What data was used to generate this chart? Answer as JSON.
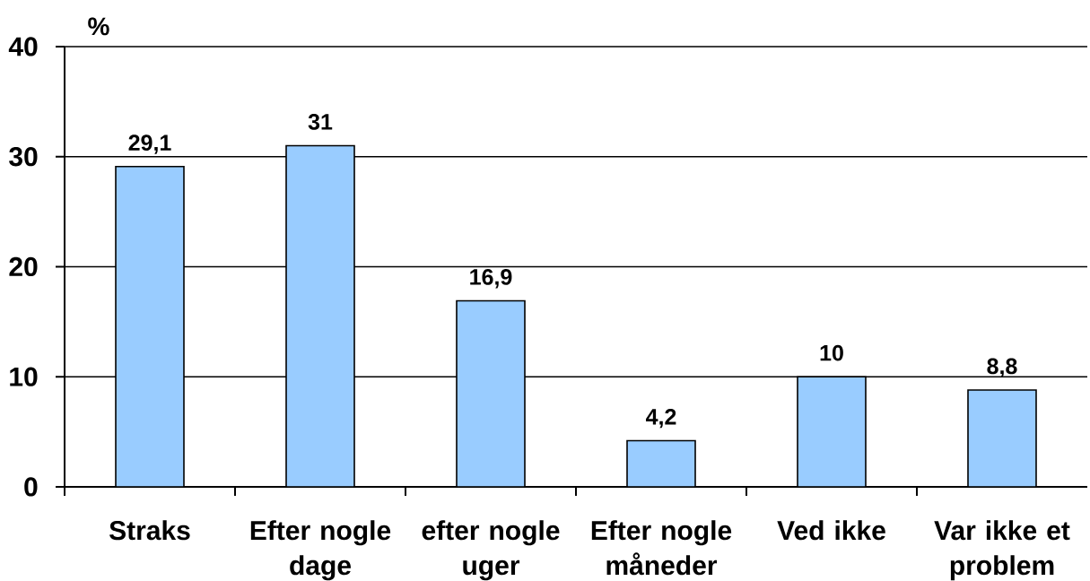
{
  "chart_data": {
    "type": "bar",
    "ylabel": "%",
    "categories": [
      "Straks",
      "Efter nogle dage",
      "efter nogle uger",
      "Efter nogle måneder",
      "Ved ikke",
      "Var ikke et problem"
    ],
    "values": [
      29.1,
      31,
      16.9,
      4.2,
      10,
      8.8
    ],
    "value_labels": [
      "29,1",
      "31",
      "16,9",
      "4,2",
      "10",
      "8,8"
    ],
    "color": "#99ccff",
    "ylim": [
      0,
      40
    ],
    "yticks": [
      0,
      10,
      20,
      30,
      40
    ],
    "grid": "y"
  }
}
